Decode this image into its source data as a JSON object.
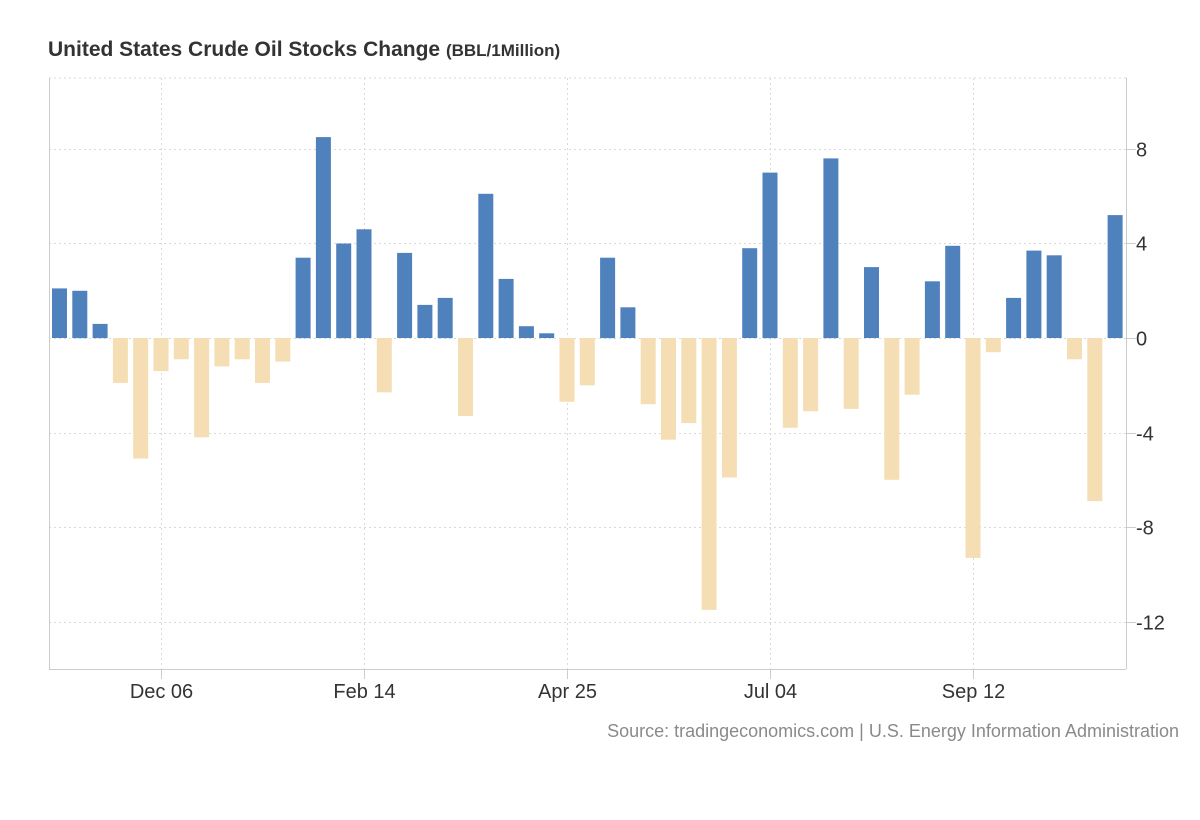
{
  "chart_data": {
    "type": "bar",
    "title": "United States Crude Oil Stocks Change",
    "unit": "(BBL/1Million)",
    "source": "Source: tradingeconomics.com | U.S. Energy Information Administration",
    "xlabel": "",
    "ylabel": "",
    "ylim": [
      -14,
      11
    ],
    "yticks": [
      -12,
      -8,
      -4,
      0,
      4,
      8
    ],
    "grid": true,
    "y_axis_position": "right",
    "x_tick_labels": [
      {
        "label": "Dec 06",
        "index": 5
      },
      {
        "label": "Feb 14",
        "index": 15
      },
      {
        "label": "Apr 25",
        "index": 25
      },
      {
        "label": "Jul 04",
        "index": 35
      },
      {
        "label": "Sep 12",
        "index": 45
      }
    ],
    "positive_color": "#4f81bd",
    "negative_color": "#f5deb3",
    "values": [
      2.1,
      2.0,
      0.6,
      -1.9,
      -5.1,
      -1.4,
      -0.9,
      -4.2,
      -1.2,
      -0.9,
      -1.9,
      -1.0,
      3.4,
      8.5,
      4.0,
      4.6,
      -2.3,
      3.6,
      1.4,
      1.7,
      -3.3,
      6.1,
      2.5,
      0.5,
      0.2,
      -2.7,
      -2.0,
      3.4,
      1.3,
      -2.8,
      -4.3,
      -3.6,
      -11.5,
      -5.9,
      3.8,
      7.0,
      -3.8,
      -3.1,
      7.6,
      -3.0,
      3.0,
      -6.0,
      -2.4,
      2.4,
      3.9,
      -9.3,
      -0.6,
      1.7,
      3.7,
      3.5,
      -0.9,
      -6.9,
      5.2
    ]
  }
}
